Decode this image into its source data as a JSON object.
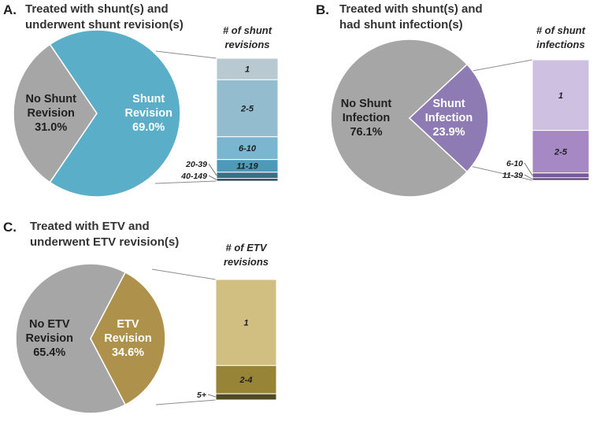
{
  "chart_data": [
    {
      "type": "pie",
      "panel": "A.",
      "title_lines": [
        "Treated with shunt(s) and",
        "underwent shunt revision(s)"
      ],
      "slices": [
        {
          "label_lines": [
            "Shunt",
            "Revision"
          ],
          "pct_label": "69.0%",
          "value": 69.0,
          "color": "#5aaec8",
          "text_color": "#ffffff"
        },
        {
          "label_lines": [
            "No Shunt",
            "Revision"
          ],
          "pct_label": "31.0%",
          "value": 31.0,
          "color": "#a6a6a6",
          "text_color": "#1f1f1f"
        }
      ],
      "breakdown": {
        "title_lines": [
          "# of shunt",
          "revisions"
        ],
        "segments": [
          {
            "label": "1",
            "value": 17,
            "color": "#b8c9d2",
            "label_pos": "inside"
          },
          {
            "label": "2-5",
            "value": 45,
            "color": "#93bccf",
            "label_pos": "inside"
          },
          {
            "label": "6-10",
            "value": 18,
            "color": "#7ab6cf",
            "label_pos": "inside"
          },
          {
            "label": "11-19",
            "value": 10,
            "color": "#4d9ab8",
            "label_pos": "inside"
          },
          {
            "label": "20-39",
            "value": 5,
            "color": "#3b6f84",
            "label_pos": "outside"
          },
          {
            "label": "40-149",
            "value": 2,
            "color": "#173a47",
            "label_pos": "outside"
          }
        ]
      }
    },
    {
      "type": "pie",
      "panel": "B.",
      "title_lines": [
        "Treated with shunt(s) and",
        "had shunt infection(s)"
      ],
      "slices": [
        {
          "label_lines": [
            "Shunt",
            "Infection"
          ],
          "pct_label": "23.9%",
          "value": 23.9,
          "color": "#8f7bb3",
          "text_color": "#ffffff"
        },
        {
          "label_lines": [
            "No Shunt",
            "Infection"
          ],
          "pct_label": "76.1%",
          "value": 76.1,
          "color": "#a6a6a6",
          "text_color": "#1f1f1f"
        }
      ],
      "breakdown": {
        "title_lines": [
          "# of shunt",
          "infections"
        ],
        "segments": [
          {
            "label": "1",
            "value": 58,
            "color": "#cdc0e0",
            "label_pos": "inside"
          },
          {
            "label": "2-5",
            "value": 35,
            "color": "#a689c4",
            "label_pos": "inside"
          },
          {
            "label": "6-10",
            "value": 4,
            "color": "#7a5a9a",
            "label_pos": "outside"
          },
          {
            "label": "11-39",
            "value": 2,
            "color": "#4b3565",
            "label_pos": "outside"
          }
        ]
      }
    },
    {
      "type": "pie",
      "panel": "C.",
      "title_lines": [
        "Treated with ETV and",
        "underwent ETV revision(s)"
      ],
      "slices": [
        {
          "label_lines": [
            "ETV",
            "Revision"
          ],
          "pct_label": "34.6%",
          "value": 34.6,
          "color": "#ae914a",
          "text_color": "#ffffff"
        },
        {
          "label_lines": [
            "No ETV",
            "Revision"
          ],
          "pct_label": "65.4%",
          "value": 65.4,
          "color": "#a6a6a6",
          "text_color": "#1f1f1f"
        }
      ],
      "breakdown": {
        "title_lines": [
          "# of ETV",
          "revisions"
        ],
        "segments": [
          {
            "label": "1",
            "value": 70,
            "color": "#d0bf81",
            "label_pos": "inside"
          },
          {
            "label": "2-4",
            "value": 23,
            "color": "#988436",
            "label_pos": "inside"
          },
          {
            "label": "5+",
            "value": 5,
            "color": "#4f4a22",
            "label_pos": "outside"
          }
        ]
      }
    }
  ]
}
